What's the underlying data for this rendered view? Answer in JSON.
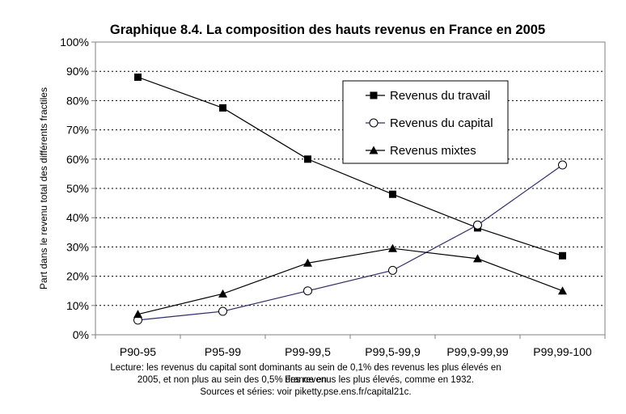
{
  "chart_data": {
    "type": "line",
    "title": "Graphique 8.4. La composition des hauts revenus en France en 2005",
    "xlabel": "",
    "ylabel": "Part dans le revenu total des différents fractiles",
    "categories": [
      "P90-95",
      "P95-99",
      "P99-99,5",
      "P99,5-99,9",
      "P99,9-99,99",
      "P99,99-100"
    ],
    "ylim": [
      0,
      100
    ],
    "yticks": [
      0,
      10,
      20,
      30,
      40,
      50,
      60,
      70,
      80,
      90,
      100
    ],
    "ytick_labels": [
      "0%",
      "10%",
      "20%",
      "30%",
      "40%",
      "50%",
      "60%",
      "70%",
      "80%",
      "90%",
      "100%"
    ],
    "grid": true,
    "legend_position": "top-right",
    "series": [
      {
        "name": "Revenus du travail",
        "marker": "square",
        "color": "#000000",
        "values": [
          88,
          77.5,
          60,
          48,
          36.5,
          27
        ]
      },
      {
        "name": "Revenus du capital",
        "marker": "circle",
        "color": "#2a2a8a",
        "values": [
          5,
          8,
          15,
          22,
          37.5,
          58
        ]
      },
      {
        "name": "Revenus mixtes",
        "marker": "triangle",
        "color": "#000000",
        "values": [
          7,
          14,
          24.5,
          29.5,
          26,
          15
        ]
      }
    ]
  },
  "notes": {
    "line1": "Lecture: les revenus du capital sont dominants au sein de 0,1% des revenus les plus élevés en France en",
    "line2": "2005, et non plus au sein des 0,5% des revenus les plus élevés, comme en 1932.",
    "line3": "Sources et séries: voir piketty.pse.ens.fr/capital21c."
  }
}
